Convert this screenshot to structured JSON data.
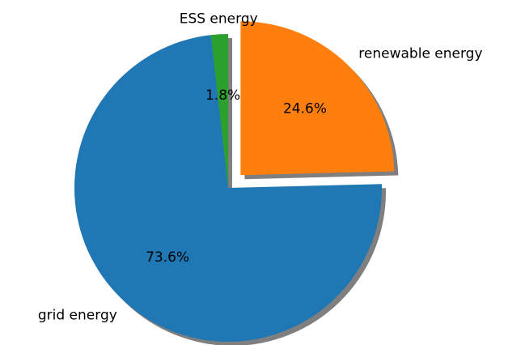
{
  "chart_data": {
    "type": "pie",
    "title": "",
    "start_angle_deg": 90,
    "direction": "counterclockwise",
    "shadow": true,
    "slices": [
      {
        "label": "ESS energy",
        "value": 1.8,
        "pct_label": "1.8%",
        "color": "#2ca02c",
        "exploded": false
      },
      {
        "label": "grid energy",
        "value": 73.6,
        "pct_label": "73.6%",
        "color": "#1f77b4",
        "exploded": false
      },
      {
        "label": "renewable energy",
        "value": 24.6,
        "pct_label": "24.6%",
        "color": "#ff7f0e",
        "exploded": true
      }
    ]
  }
}
